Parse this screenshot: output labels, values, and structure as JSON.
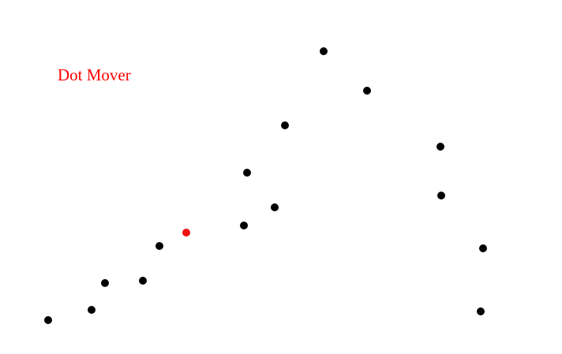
{
  "game": {
    "title": "Dot Mover",
    "title_color": "#ff0000",
    "dot_color": "#000000",
    "player_color": "#ee1111"
  }
}
